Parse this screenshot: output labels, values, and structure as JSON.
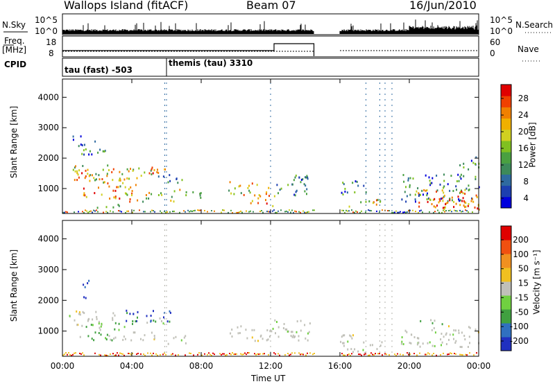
{
  "header": {
    "station": "Wallops Island (fitACF)",
    "beam": "Beam 07",
    "date": "16/Jun/2010"
  },
  "top_panels": {
    "nsky_label": "N.Sky",
    "nsky_ticks": [
      "10^5",
      "10^0"
    ],
    "nsearch_label": "N.Search",
    "nsearch_ticks": [
      "10^5",
      "10^0"
    ],
    "freq_label": "Freq.",
    "freq_unit": "[MHz]",
    "freq_ticks": [
      "18",
      "8"
    ],
    "nave_label": "Nave",
    "nave_ticks": [
      "60",
      "0"
    ],
    "cpid_label": "CPID",
    "cpid_segments": [
      {
        "label": "tau (fast) -503",
        "start": "00:00"
      },
      {
        "label": "themis (tau) 3310",
        "start": "06:00"
      }
    ]
  },
  "chart_data": [
    {
      "type": "heatmap",
      "name": "power-panel",
      "ylabel": "Slant Range [km]",
      "ylim": [
        180,
        4600
      ],
      "yticks": [
        "4000",
        "3000",
        "2000",
        "1000"
      ],
      "xlim": [
        "00:00",
        "24:00"
      ],
      "colorbar": {
        "label": "Power [dB]",
        "ticks": [
          "28",
          "24",
          "20",
          "16",
          "12",
          "8",
          "4"
        ],
        "colors": [
          "#0000dd",
          "#1c3fb0",
          "#2e6aa0",
          "#3d8a5a",
          "#4aa040",
          "#80c020",
          "#d0d020",
          "#f0b000",
          "#f08000",
          "#f04000",
          "#e00000"
        ]
      },
      "data_gap": [
        "14:30",
        "16:00"
      ]
    },
    {
      "type": "heatmap",
      "name": "velocity-panel",
      "ylabel": "Slant Range [km]",
      "ylim": [
        180,
        4600
      ],
      "yticks": [
        "4000",
        "3000",
        "2000",
        "1000"
      ],
      "xlim": [
        "00:00",
        "24:00"
      ],
      "colorbar": {
        "label": "Velocity [m s⁻¹]",
        "ticks": [
          "200",
          "100",
          "50",
          "15",
          "-15",
          "-50",
          "-100",
          "-200"
        ],
        "colors": [
          "#2030c0",
          "#3070c0",
          "#40a040",
          "#70d040",
          "#c0c0b8",
          "#f0c020",
          "#f09020",
          "#f05010",
          "#e00000"
        ]
      },
      "data_gap": [
        "14:30",
        "16:00"
      ]
    }
  ],
  "xaxis": {
    "ticks": [
      "00:00",
      "04:00",
      "08:00",
      "12:00",
      "16:00",
      "20:00",
      "00:00"
    ],
    "label": "Time UT"
  },
  "colors": {
    "gray": "#c0c0b8"
  }
}
